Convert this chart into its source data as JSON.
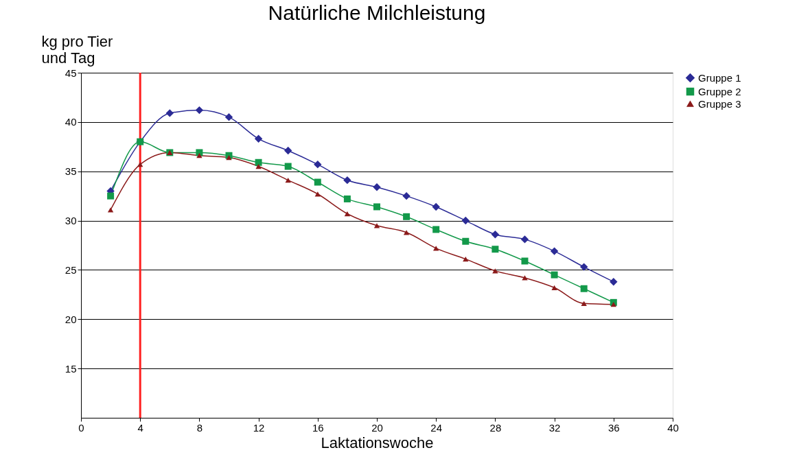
{
  "chart_data": {
    "type": "line",
    "title": "Natürliche Milchleistung",
    "xlabel": "Laktationswoche",
    "ylabel": "kg pro Tier\nund Tag",
    "x": [
      2,
      4,
      6,
      8,
      10,
      12,
      14,
      16,
      18,
      20,
      22,
      24,
      26,
      28,
      30,
      32,
      34,
      36
    ],
    "series": [
      {
        "name": "Gruppe 1",
        "color": "#2b2b96",
        "marker": "diamond",
        "values": [
          33.0,
          38.0,
          40.9,
          41.2,
          40.5,
          38.3,
          37.1,
          35.7,
          34.1,
          33.4,
          32.5,
          31.4,
          30.0,
          28.6,
          28.1,
          26.9,
          25.3,
          23.8
        ]
      },
      {
        "name": "Gruppe 2",
        "color": "#13994a",
        "marker": "square",
        "values": [
          32.5,
          38.0,
          36.9,
          36.9,
          36.6,
          35.9,
          35.5,
          33.9,
          32.2,
          31.4,
          30.4,
          29.1,
          27.9,
          27.1,
          25.9,
          24.5,
          23.1,
          21.7
        ]
      },
      {
        "name": "Gruppe 3",
        "color": "#8b1a1a",
        "marker": "triangle",
        "values": [
          31.1,
          35.7,
          36.9,
          36.6,
          36.4,
          35.5,
          34.1,
          32.7,
          30.7,
          29.5,
          28.8,
          27.2,
          26.1,
          24.9,
          24.2,
          23.2,
          21.6,
          21.5
        ]
      }
    ],
    "xlim": [
      0,
      40
    ],
    "xticks": [
      0,
      4,
      8,
      12,
      16,
      20,
      24,
      28,
      32,
      36,
      40
    ],
    "ylim": [
      10,
      45
    ],
    "yticks": [
      15,
      20,
      25,
      30,
      35,
      40,
      45
    ],
    "ref_lines": [
      {
        "axis": "x",
        "value": 4,
        "color": "#ff2020"
      }
    ],
    "grid": "y",
    "legend": "right",
    "line_style": "solid"
  }
}
